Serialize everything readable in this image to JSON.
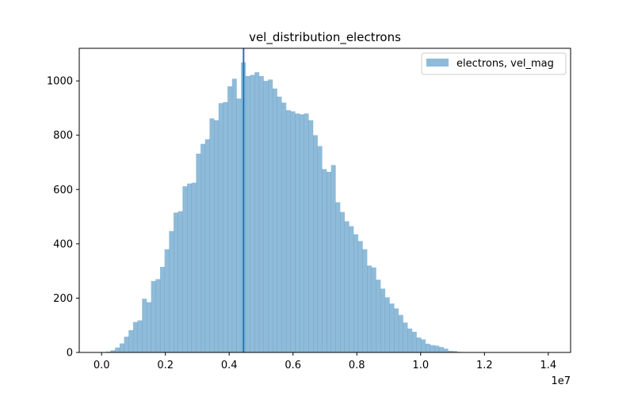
{
  "chart_data": {
    "type": "bar",
    "title": "vel_distribution_electrons",
    "xlabel": "",
    "ylabel": "",
    "x_offset_label": "1e7",
    "xlim": [
      -0.07,
      1.47
    ],
    "ylim": [
      0,
      1120
    ],
    "x_ticks": [
      0.0,
      0.2,
      0.4,
      0.6,
      0.8,
      1.0,
      1.2,
      1.4
    ],
    "x_tick_labels": [
      "0.0",
      "0.2",
      "0.4",
      "0.6",
      "0.8",
      "1.0",
      "1.2",
      "1.4"
    ],
    "y_ticks": [
      0,
      200,
      400,
      600,
      800,
      1000
    ],
    "y_tick_labels": [
      "0",
      "200",
      "400",
      "600",
      "800",
      "1000"
    ],
    "bin_start": 0.0,
    "bin_width": 0.0141,
    "counts": [
      0,
      3,
      8,
      18,
      33,
      58,
      82,
      112,
      118,
      198,
      185,
      263,
      270,
      315,
      380,
      447,
      515,
      520,
      612,
      622,
      625,
      732,
      768,
      785,
      862,
      855,
      918,
      922,
      980,
      1008,
      935,
      1068,
      1018,
      1022,
      1032,
      1018,
      1000,
      1005,
      972,
      942,
      920,
      892,
      888,
      880,
      877,
      880,
      855,
      800,
      760,
      675,
      665,
      690,
      553,
      517,
      483,
      465,
      435,
      410,
      380,
      320,
      313,
      268,
      235,
      203,
      180,
      162,
      138,
      110,
      88,
      76,
      55,
      48,
      32,
      27,
      25,
      20,
      14,
      6,
      5,
      2,
      1
    ],
    "bar_color": "#1f77b4",
    "bar_alpha": 0.5,
    "vline_x": 0.445,
    "vline_color": "#1f77b4",
    "legend": {
      "entries": [
        "electrons, vel_mag"
      ],
      "placement": "top-right"
    }
  }
}
